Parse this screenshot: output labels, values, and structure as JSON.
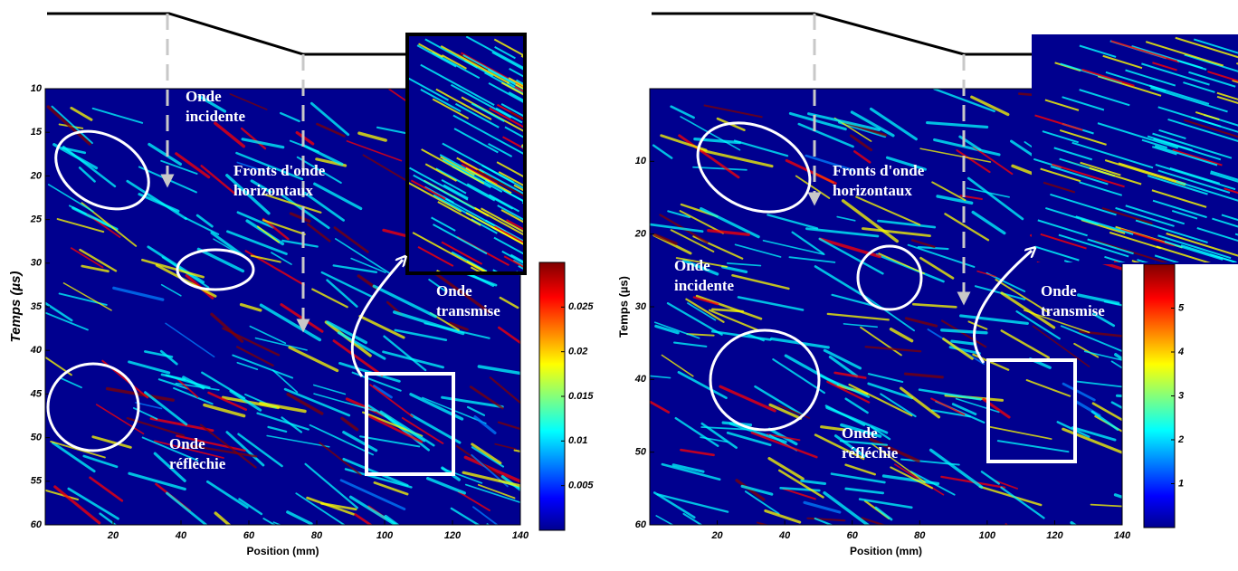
{
  "chart_data": [
    {
      "type": "heatmap",
      "xlabel": "Position (mm)",
      "ylabel": "Temps (µs)",
      "xlim": [
        0,
        140
      ],
      "xticks": [
        20,
        40,
        60,
        80,
        100,
        120,
        140
      ],
      "ylim": [
        10,
        60
      ],
      "yticks": [
        10,
        15,
        20,
        25,
        30,
        35,
        40,
        45,
        50,
        55,
        60
      ],
      "clim": [
        0,
        0.03
      ],
      "colorbar_ticks": [
        0.005,
        0.01,
        0.015,
        0.02,
        0.025
      ],
      "annotations": [
        [
          "Onde",
          "incidente"
        ],
        [
          "Fronts d'onde",
          "horizontaux"
        ],
        [
          "Onde",
          "transmise"
        ],
        [
          "Onde",
          "réfléchie"
        ]
      ]
    },
    {
      "type": "heatmap",
      "xlabel": "Position (mm)",
      "ylabel": "Temps (µs)",
      "xlim": [
        0,
        140
      ],
      "xticks": [
        20,
        40,
        60,
        80,
        100,
        120,
        140
      ],
      "ylim": [
        0,
        60
      ],
      "yticks": [
        10,
        20,
        30,
        40,
        50,
        60
      ],
      "clim": [
        0,
        6
      ],
      "colorbar_ticks": [
        1,
        2,
        3,
        4,
        5
      ],
      "annotations": [
        [
          "Onde",
          "incidente"
        ],
        [
          "Fronts d'onde",
          "horizontaux"
        ],
        [
          "Onde",
          "transmise"
        ],
        [
          "Onde",
          "réfléchie"
        ]
      ]
    }
  ]
}
